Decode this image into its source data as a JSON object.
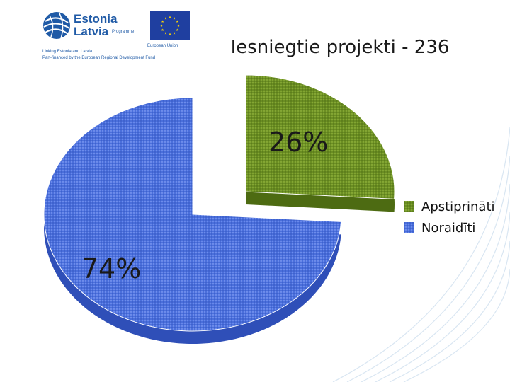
{
  "branding": {
    "programme_name_line1": "Estonia",
    "programme_name_line2": "Latvia",
    "programme_suffix": "Programme",
    "tagline_line1": "Linking Estonia and Latvia",
    "tagline_line2": "Part-financed by the European Regional Development Fund",
    "eu_label": "European Union",
    "brand_color": "#1f5aa6",
    "eu_flag_color": "#1f3fa0",
    "eu_star_color": "#ffd700"
  },
  "chart_data": {
    "type": "pie",
    "title": "Iesniegtie projekti - 236",
    "style": "3d-exploded",
    "slices": [
      {
        "label": "Apstiprināti",
        "value": 26,
        "display": "26%",
        "color": "#6b8e23"
      },
      {
        "label": "Noraidīti",
        "value": 74,
        "display": "74%",
        "color": "#4a6fdc"
      }
    ],
    "legend_position": "right"
  }
}
